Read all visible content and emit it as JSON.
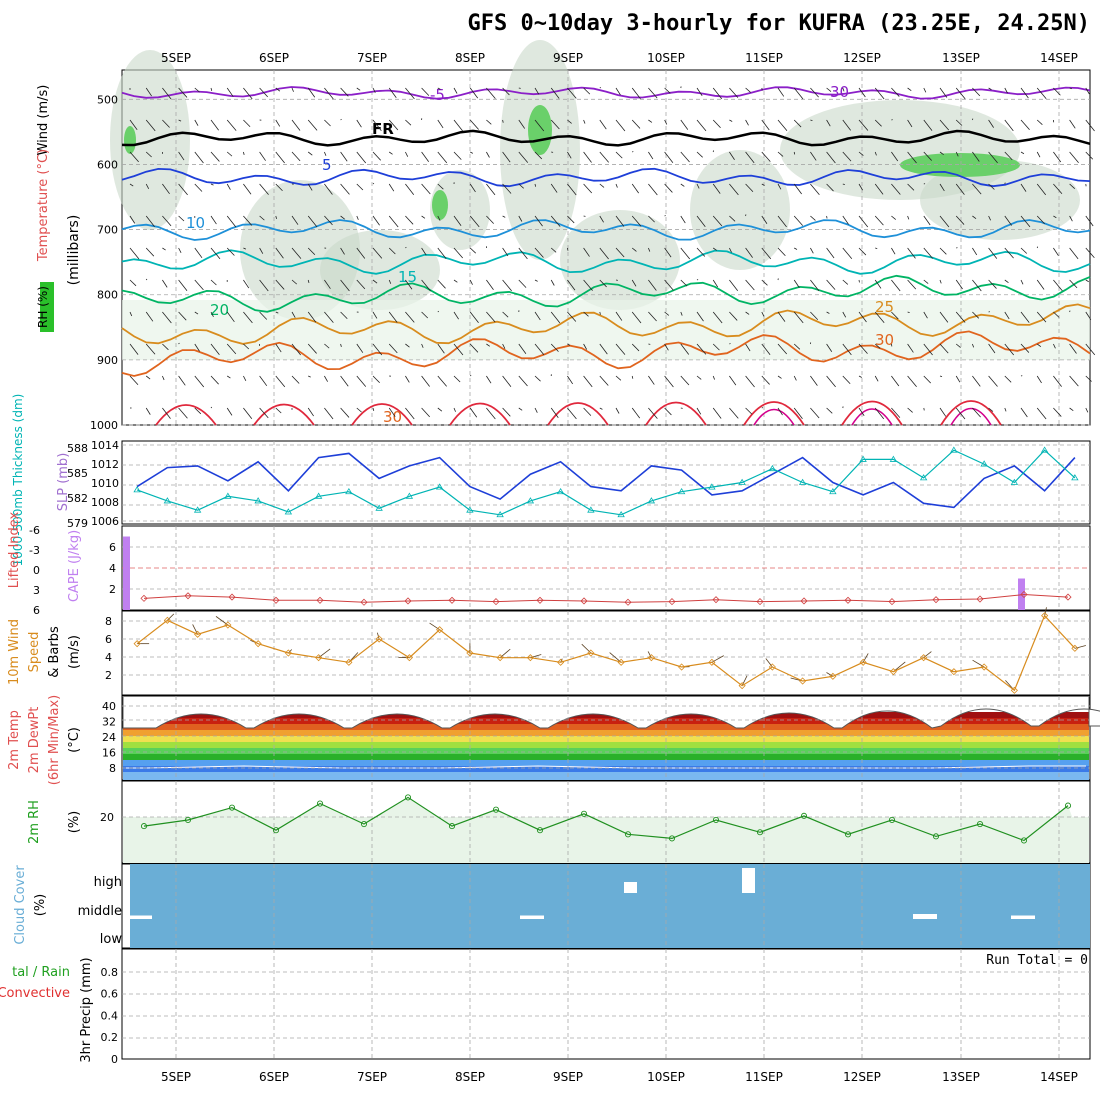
{
  "title": "GFS 0~10day 3-hourly for KUFRA (23.25E, 24.25N)",
  "date_labels": [
    "5SEP",
    "6SEP",
    "7SEP",
    "8SEP",
    "9SEP",
    "10SEP",
    "11SEP",
    "12SEP",
    "13SEP",
    "14SEP"
  ],
  "run_total_label": "Run Total = 0",
  "colors": {
    "purple": "#8b1fc8",
    "blue": "#1e3fd8",
    "lightblue": "#1e90d8",
    "teal": "#00b4b4",
    "green": "#00b464",
    "orange": "#d88c1e",
    "darkorange": "#e0641e",
    "red": "#e0283c",
    "cloud": "#6aaed6",
    "rh_fill": "#e8f4e8",
    "panel_grid": "#a8a8a8"
  },
  "panels": {
    "upper": {
      "ylabel_wind": "Wind (m/s)",
      "ylabel_temp": "Temperature (°C)",
      "ylabel_rh": "RH (%)",
      "ylabel_units": "(millibars)",
      "yticks": [
        "500",
        "600",
        "700",
        "800",
        "900",
        "1000"
      ]
    },
    "slp": {
      "ylabel_left": "1000-500mb Thickness (dm)",
      "ylabel_right": "SLP (mb)",
      "yticks_left": [
        "588",
        "585",
        "582",
        "579"
      ],
      "yticks_right": [
        "1014",
        "1012",
        "1010",
        "1008",
        "1006"
      ]
    },
    "cape": {
      "ylabel_left": "Lifted Index",
      "ylabel_right": "CAPE (J/kg)",
      "yticks_left": [
        "-6",
        "-3",
        "0",
        "3",
        "6"
      ],
      "yticks_right": [
        "6",
        "4",
        "2"
      ]
    },
    "wind10": {
      "ylabel_left": "10m Wind",
      "ylabel_mid": "Speed",
      "ylabel_right": "& Barbs",
      "ylabel_units": "(m/s)",
      "yticks": [
        "8",
        "6",
        "4",
        "2"
      ]
    },
    "temp2m": {
      "ylabel_1": "2m Temp",
      "ylabel_2": "2m DewPt",
      "ylabel_3": "(6hr Min/Max)",
      "ylabel_units": "(°C)",
      "yticks": [
        "40",
        "32",
        "24",
        "16",
        "8"
      ]
    },
    "rh2m": {
      "ylabel": "2m RH",
      "ylabel_units": "(%)",
      "yticks": [
        "20"
      ]
    },
    "cloud": {
      "ylabel": "Cloud Cover",
      "ylabel_units": "(%)",
      "levels": [
        "high",
        "middle",
        "low"
      ]
    },
    "precip": {
      "ylabel_left": "tal / Rain",
      "ylabel_left2": "Convective",
      "ylabel": "3hr Precip (mm)",
      "yticks": [
        "0.8",
        "0.6",
        "0.4",
        "0.2",
        "0"
      ]
    }
  },
  "chart_data": {
    "type": "line",
    "x_days": [
      "5SEP",
      "6SEP",
      "7SEP",
      "8SEP",
      "9SEP",
      "10SEP",
      "11SEP",
      "12SEP",
      "13SEP",
      "14SEP"
    ],
    "steps_per_day": 8,
    "temperature_isotherms": [
      {
        "label": "-5",
        "level_mb": 490
      },
      {
        "label": "FR",
        "level_mb": 560
      },
      {
        "label": "5",
        "level_mb": 620
      },
      {
        "label": "10",
        "level_mb": 700
      },
      {
        "label": "15",
        "level_mb": 750
      },
      {
        "label": "20",
        "level_mb": 810
      },
      {
        "label": "25",
        "level_mb": 860
      },
      {
        "label": "30",
        "level_mb": 900
      }
    ],
    "isotherm_labels": [
      "-5",
      "FR",
      "5",
      "10",
      "15",
      "20",
      "25",
      "30",
      "30",
      "30"
    ],
    "thickness_dm": [
      582.5,
      584.8,
      585.0,
      583.2,
      585.5,
      582.0,
      586.0,
      586.5,
      583.5,
      585.0,
      586.0,
      582.5,
      581.0,
      584.0,
      585.5,
      582.5,
      582.0,
      585.0,
      584.5,
      581.5,
      582.0,
      584.0,
      586.0,
      583.0,
      581.5,
      583.0,
      580.5,
      580.0,
      583.5,
      585.0,
      582.0,
      586.0
    ],
    "slp_mb": [
      1009.2,
      1008.0,
      1007.0,
      1008.5,
      1008.0,
      1006.8,
      1008.5,
      1009.0,
      1007.2,
      1008.5,
      1009.5,
      1007.0,
      1006.5,
      1008.0,
      1009.0,
      1007.0,
      1006.5,
      1008.0,
      1009.0,
      1009.5,
      1010.0,
      1011.5,
      1010.0,
      1009.0,
      1012.5,
      1012.5,
      1010.5,
      1013.5,
      1012.0,
      1010.0,
      1013.5,
      1010.5
    ],
    "lifted_index": [
      5.2,
      4.8,
      5.0,
      5.5,
      5.5,
      5.8,
      5.6,
      5.5,
      5.7,
      5.5,
      5.6,
      5.8,
      5.7,
      5.4,
      5.7,
      5.6,
      5.5,
      5.7,
      5.4,
      5.3,
      4.6,
      5.0
    ],
    "cape_bars": [
      {
        "day": "4SEP",
        "value": 7
      },
      {
        "day": "13SEP",
        "value": 3
      }
    ],
    "wind10_speed": [
      5.5,
      8.0,
      6.5,
      7.5,
      5.5,
      4.5,
      4.0,
      3.5,
      6.0,
      4.0,
      7.0,
      4.5,
      4.0,
      4.0,
      3.5,
      4.5,
      3.5,
      4.0,
      3.0,
      3.5,
      1.0,
      3.0,
      1.5,
      2.0,
      3.5,
      2.5,
      4.0,
      2.5,
      3.0,
      0.5,
      8.5,
      5.0
    ],
    "temp2m_max": [
      37,
      37,
      37,
      37,
      37,
      37,
      38,
      40,
      41,
      41
    ],
    "temp2m_min": [
      28,
      28,
      28,
      28,
      28,
      28,
      28,
      28,
      29,
      29
    ],
    "dewpoint2m": [
      8,
      9,
      8,
      8,
      9,
      8,
      8,
      8,
      8,
      9
    ],
    "rh2m": [
      18,
      21,
      27,
      16,
      29,
      19,
      32,
      18,
      26,
      16,
      24,
      14,
      12,
      21,
      15,
      23,
      14,
      21,
      13,
      19,
      11,
      28
    ],
    "cloud_high_pct": [
      0,
      0,
      0,
      0,
      0,
      22,
      50,
      0,
      0,
      0
    ],
    "cloud_mid_pct": [
      5,
      0,
      0,
      0,
      5,
      0,
      0,
      0,
      8,
      5
    ],
    "precip_3hr_mm": [
      0,
      0,
      0,
      0,
      0,
      0,
      0,
      0,
      0,
      0
    ],
    "precip_ylim": [
      0,
      1
    ]
  }
}
